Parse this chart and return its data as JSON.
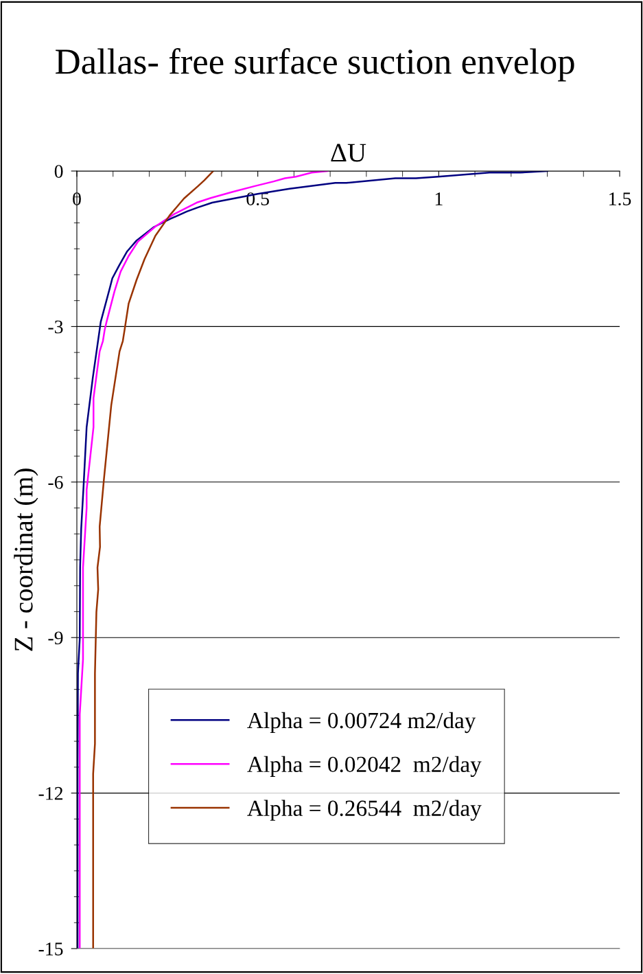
{
  "chart_data": {
    "type": "line",
    "title": "Dallas- free surface suction envelop",
    "xlabel": "ΔU",
    "ylabel": "Z - coordinat (m)",
    "xlim": [
      0,
      1.5
    ],
    "xticks": [
      0,
      0.5,
      1,
      1.5
    ],
    "ylim": [
      -15,
      0
    ],
    "yticks": [
      0,
      -3,
      -6,
      -9,
      -12,
      -15
    ],
    "grid": "y",
    "legend": "bottom",
    "marker": "none",
    "line_style": "solid",
    "series": [
      {
        "name": "Alpha = 0.00724 m2/day",
        "color": "#000080",
        "x": [
          1.3,
          1.225,
          1.14,
          0.998,
          0.937,
          0.88,
          0.745,
          0.714,
          0.588,
          0.5,
          0.374,
          0.335,
          0.304,
          0.256,
          0.213,
          0.165,
          0.139,
          0.117,
          0.098,
          0.091,
          0.066,
          0.063,
          0.044,
          0.027,
          0.018,
          0.012,
          0.009,
          0.008,
          0.003,
          0.002,
          0.002
        ],
        "values": [
          0,
          -0.03,
          -0.03,
          -0.11,
          -0.14,
          -0.14,
          -0.23,
          -0.23,
          -0.34,
          -0.44,
          -0.61,
          -0.7,
          -0.78,
          -0.93,
          -1.08,
          -1.34,
          -1.55,
          -1.82,
          -2.07,
          -2.26,
          -2.91,
          -3.06,
          -3.99,
          -4.94,
          -6.15,
          -6.9,
          -7.65,
          -9.02,
          -9.69,
          -11.5,
          -15
        ]
      },
      {
        "name": "Alpha = 0.02042  m2/day",
        "color": "#ff00ff",
        "x": [
          0.693,
          0.649,
          0.605,
          0.575,
          0.544,
          0.492,
          0.431,
          0.37,
          0.331,
          0.3,
          0.269,
          0.217,
          0.169,
          0.143,
          0.121,
          0.104,
          0.082,
          0.077,
          0.072,
          0.063,
          0.046,
          0.046,
          0.027,
          0.027,
          0.017,
          0.017,
          0.008,
          0.008
        ],
        "values": [
          0,
          -0.03,
          -0.11,
          -0.14,
          -0.2,
          -0.29,
          -0.4,
          -0.52,
          -0.61,
          -0.72,
          -0.83,
          -1.07,
          -1.36,
          -1.64,
          -1.94,
          -2.32,
          -2.91,
          -3.06,
          -3.28,
          -3.48,
          -4.38,
          -4.94,
          -6.15,
          -6.5,
          -7.65,
          -9.42,
          -10.48,
          -15
        ]
      },
      {
        "name": "Alpha = 0.26544  m2/day",
        "color": "#993300",
        "x": [
          0.377,
          0.352,
          0.335,
          0.296,
          0.256,
          0.217,
          0.187,
          0.165,
          0.143,
          0.132,
          0.127,
          0.118,
          0.095,
          0.075,
          0.063,
          0.064,
          0.057,
          0.059,
          0.054,
          0.05,
          0.05,
          0.045,
          0.045
        ],
        "values": [
          0,
          -0.18,
          -0.29,
          -0.53,
          -0.86,
          -1.25,
          -1.7,
          -2.1,
          -2.56,
          -3.06,
          -3.28,
          -3.48,
          -4.52,
          -5.93,
          -6.86,
          -7.25,
          -7.65,
          -8.07,
          -8.51,
          -9.69,
          -11.05,
          -11.63,
          -15
        ]
      }
    ]
  }
}
